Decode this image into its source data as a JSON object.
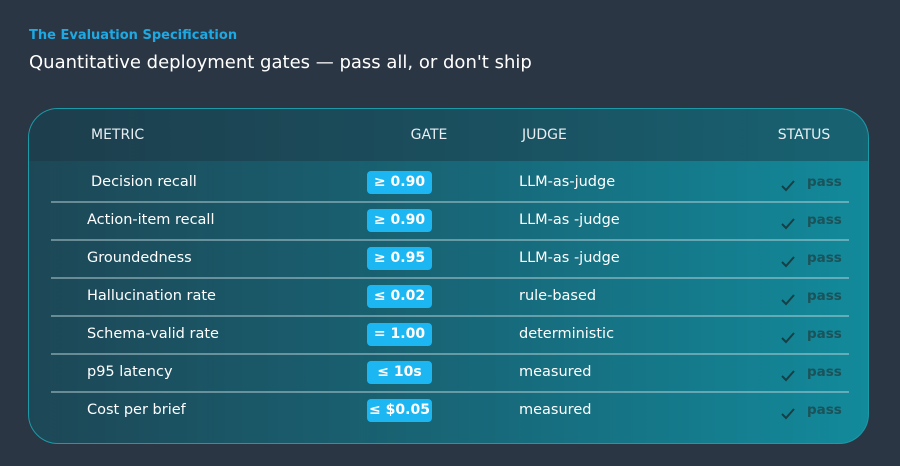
{
  "header": {
    "eyebrow": "The Evaluation Specification",
    "title": "Quantitative deployment gates — pass all, or don't ship"
  },
  "table": {
    "columns": [
      "METRIC",
      "GATE",
      "JUDGE",
      "STATUS"
    ],
    "rows": [
      [
        "Decision recall",
        "≥ 0.90",
        "LLM-as-judge",
        "pass"
      ],
      [
        "Action-item recall",
        "≥ 0.90",
        "LLM-as -judge",
        "pass"
      ],
      [
        "Groundedness",
        "≥ 0.95",
        "LLM-as -judge",
        "pass"
      ],
      [
        "Hallucination rate",
        "≤ 0.02",
        "rule-based",
        "pass"
      ],
      [
        "Schema-valid rate",
        "= 1.00",
        "deterministic",
        "pass"
      ],
      [
        "p95 latency",
        "≤ 10s",
        "measured",
        "pass"
      ],
      [
        "Cost per brief",
        "≤ $0.05",
        "measured",
        "pass"
      ]
    ]
  }
}
